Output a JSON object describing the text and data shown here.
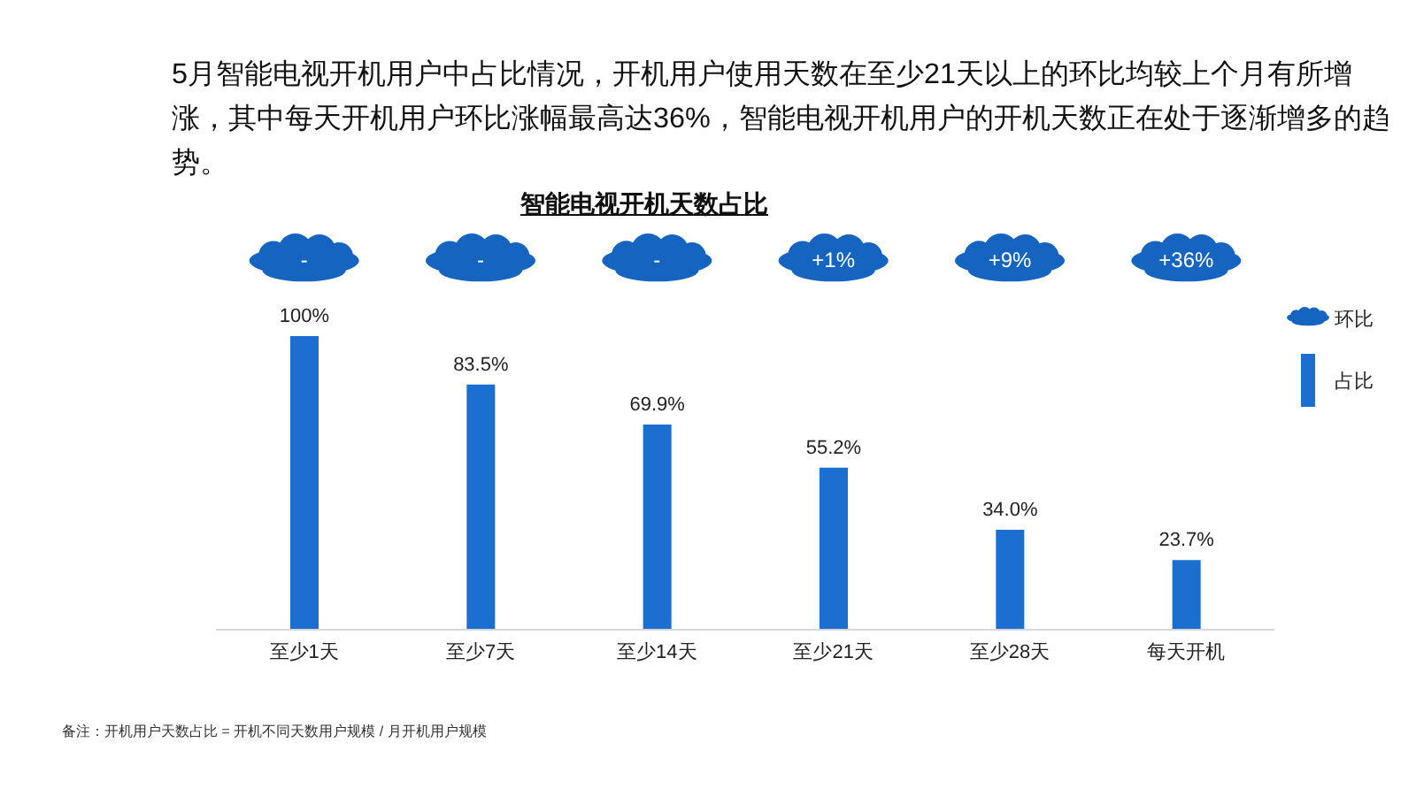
{
  "chart_data": {
    "type": "bar",
    "title": "5月智能电视开机用户中占比情况，开机用户使用天数在至少21天以上的环比均较上个月有所增涨，其中每天开机用户环比涨幅最高达36%，智能电视开机用户的开机天数正在处于逐渐增多的趋势。",
    "subtitle": "智能电视开机天数占比",
    "categories": [
      "至少1天",
      "至少7天",
      "至少14天",
      "至少21天",
      "至少28天",
      "每天开机"
    ],
    "series": [
      {
        "name": "占比",
        "color": "#1a6fd0",
        "values": [
          100,
          83.5,
          69.9,
          55.2,
          34.0,
          23.7
        ],
        "value_labels": [
          "100%",
          "83.5%",
          "69.9%",
          "55.2%",
          "34.0%",
          "23.7%"
        ]
      }
    ],
    "legend": "right",
    "annotations": [
      "-",
      "-",
      "-",
      "+1%",
      "+9%",
      "+36%",
      "环比",
      "备注：开机用户天数占比 = 开机不同天数用户规模 / 月开机用户规模"
    ]
  }
}
